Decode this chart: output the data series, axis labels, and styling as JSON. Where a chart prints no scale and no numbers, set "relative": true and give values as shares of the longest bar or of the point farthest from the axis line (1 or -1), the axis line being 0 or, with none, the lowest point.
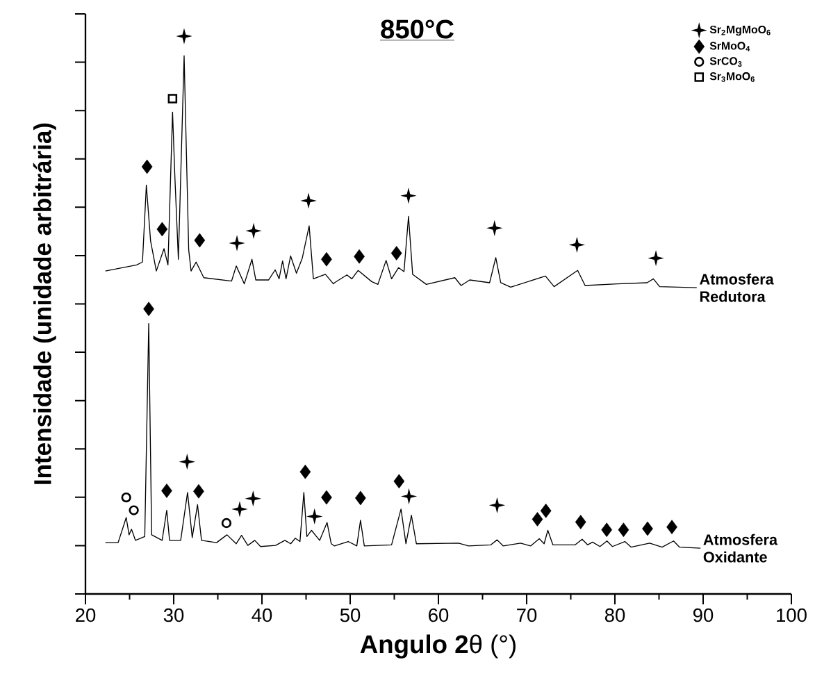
{
  "chart_data": {
    "type": "line",
    "title": "850°C",
    "xlabel": "**Angulo 2**θ (°)",
    "ylabel": "Intensidade (unidade arbitrária)",
    "relative": true,
    "xlim": [
      20,
      100
    ],
    "xticks": [
      20,
      30,
      40,
      50,
      60,
      70,
      80,
      90,
      100
    ],
    "legend": "top right",
    "series": [
      {
        "name": "Atmosfera Redutora",
        "color": "#000000",
        "x": [
          22.26,
          25.8,
          26.46,
          26.9,
          27.38,
          28.03,
          28.9,
          29.35,
          29.87,
          30.13,
          30.53,
          31.18,
          31.7,
          31.97,
          32.54,
          33.41,
          36.56,
          37.09,
          38.0,
          38.87,
          39.3,
          40.76,
          41.5,
          41.94,
          42.34,
          42.73,
          43.25,
          43.91,
          44.57,
          45.35,
          45.83,
          47.19,
          48.1,
          48.22,
          49.63,
          50.19,
          50.9,
          52.44,
          53.14,
          54.07,
          54.69,
          55.48,
          56.1,
          56.61,
          57.08,
          58.63,
          61.86,
          62.57,
          63.55,
          65.8,
          66.5,
          67.06,
          68.19,
          72.13,
          73.11,
          75.78,
          76.62,
          80.28,
          83.65,
          84.36,
          85.07,
          89.28
        ],
        "values": [
          0.579,
          0.59,
          0.595,
          0.733,
          0.633,
          0.579,
          0.619,
          0.59,
          0.864,
          0.749,
          0.6,
          0.965,
          0.617,
          0.579,
          0.595,
          0.567,
          0.561,
          0.588,
          0.556,
          0.6,
          0.563,
          0.563,
          0.581,
          0.565,
          0.597,
          0.565,
          0.606,
          0.575,
          0.602,
          0.66,
          0.565,
          0.573,
          0.556,
          0.558,
          0.572,
          0.565,
          0.58,
          0.56,
          0.555,
          0.598,
          0.565,
          0.585,
          0.578,
          0.677,
          0.573,
          0.555,
          0.567,
          0.553,
          0.563,
          0.558,
          0.603,
          0.558,
          0.55,
          0.57,
          0.551,
          0.58,
          0.553,
          0.556,
          0.558,
          0.565,
          0.551,
          0.549
        ]
      },
      {
        "name": "Atmosfera Oxidante",
        "color": "#000000",
        "x": [
          22.26,
          23.7,
          24.62,
          24.94,
          25.22,
          25.67,
          26.72,
          27.17,
          27.5,
          28.69,
          29.21,
          29.53,
          30.79,
          31.57,
          32.1,
          32.7,
          33.15,
          34.86,
          36.04,
          37.09,
          37.69,
          38.4,
          39.19,
          39.84,
          41.55,
          42.6,
          43.26,
          43.78,
          44.31,
          44.75,
          45.09,
          45.62,
          46.54,
          47.38,
          47.85,
          48.22,
          49.77,
          50.75,
          51.17,
          51.6,
          54.69,
          55.76,
          56.32,
          56.94,
          57.5,
          62.28,
          63.41,
          65.94,
          66.65,
          67.35,
          69.31,
          70.44,
          71.43,
          71.98,
          72.4,
          72.97,
          75.5,
          76.29,
          76.9,
          77.47,
          78.31,
          79.1,
          79.72,
          81.13,
          81.83,
          83.94,
          85.35,
          86.65,
          87.31,
          89.7
        ],
        "values": [
          0.092,
          0.092,
          0.137,
          0.106,
          0.116,
          0.096,
          0.103,
          0.485,
          0.106,
          0.096,
          0.15,
          0.096,
          0.096,
          0.182,
          0.101,
          0.16,
          0.096,
          0.092,
          0.106,
          0.09,
          0.105,
          0.087,
          0.096,
          0.085,
          0.087,
          0.096,
          0.09,
          0.1,
          0.094,
          0.182,
          0.103,
          0.114,
          0.096,
          0.128,
          0.09,
          0.086,
          0.094,
          0.086,
          0.132,
          0.086,
          0.088,
          0.152,
          0.09,
          0.141,
          0.09,
          0.091,
          0.086,
          0.088,
          0.097,
          0.086,
          0.091,
          0.086,
          0.099,
          0.09,
          0.114,
          0.088,
          0.088,
          0.098,
          0.088,
          0.093,
          0.085,
          0.095,
          0.085,
          0.094,
          0.084,
          0.091,
          0.084,
          0.095,
          0.084,
          0.082
        ]
      },
      {
        "name": "Sr$_{2}$MgMoO$_{6}$",
        "type": "scatter",
        "marker": "cross",
        "color": "#000000",
        "x": [
          31.18,
          37.17,
          39.06,
          45.28,
          56.61,
          66.36,
          75.7,
          84.65,
          31.52,
          37.48,
          39.0,
          45.96,
          56.66,
          66.65
        ],
        "values": [
          1.0,
          0.629,
          0.651,
          0.705,
          0.714,
          0.656,
          0.626,
          0.602,
          0.237,
          0.152,
          0.171,
          0.139,
          0.175,
          0.159
        ]
      },
      {
        "name": "SrMoO$_{4}$",
        "type": "scatter",
        "marker": "diamond",
        "color": "#000000",
        "x": [
          26.98,
          28.69,
          32.94,
          47.32,
          51.03,
          55.25,
          27.17,
          29.21,
          32.83,
          44.91,
          47.32,
          51.17,
          55.54,
          71.22,
          72.18,
          76.12,
          79.07,
          80.98,
          83.7,
          86.46
        ],
        "values": [
          0.766,
          0.654,
          0.634,
          0.6,
          0.605,
          0.611,
          0.511,
          0.185,
          0.184,
          0.219,
          0.173,
          0.172,
          0.202,
          0.134,
          0.149,
          0.129,
          0.115,
          0.115,
          0.117,
          0.12
        ]
      },
      {
        "name": "SrCO$_{3}$",
        "type": "scatter",
        "marker": "circle",
        "color": "#000000",
        "x": [
          24.62,
          25.48,
          35.98
        ],
        "values": [
          0.173,
          0.15,
          0.127
        ]
      },
      {
        "name": "Sr$_{3}$MoO$_{6}$",
        "type": "scatter",
        "marker": "square",
        "color": "#000000",
        "x": [
          29.87
        ],
        "values": [
          0.888
        ]
      }
    ]
  }
}
